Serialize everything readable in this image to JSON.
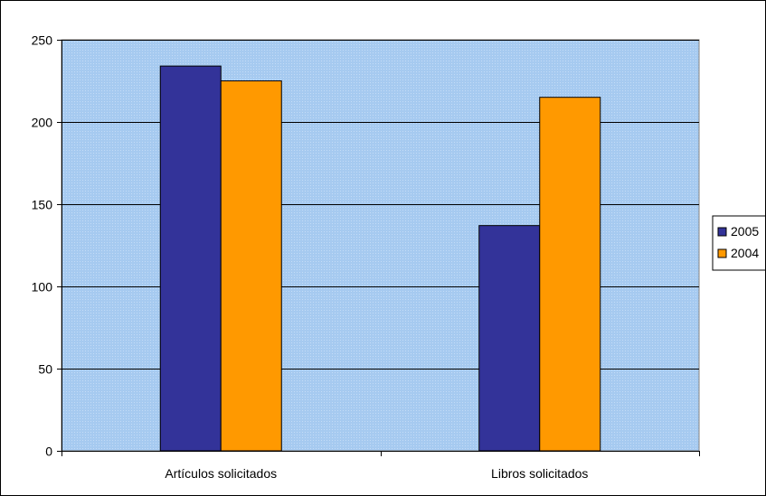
{
  "chart_data": {
    "type": "bar",
    "categories": [
      "Artículos solicitados",
      "Libros solicitados"
    ],
    "series": [
      {
        "name": "2005",
        "values": [
          234,
          137
        ],
        "color": "#333399"
      },
      {
        "name": "2004",
        "values": [
          225,
          215
        ],
        "color": "#ff9900"
      }
    ],
    "ylim": [
      0,
      250
    ],
    "yticks": [
      0,
      50,
      100,
      150,
      200,
      250
    ],
    "title": "",
    "xlabel": "",
    "ylabel": "",
    "grid": true,
    "legend": "right",
    "plot_background": "#a6caf0"
  }
}
